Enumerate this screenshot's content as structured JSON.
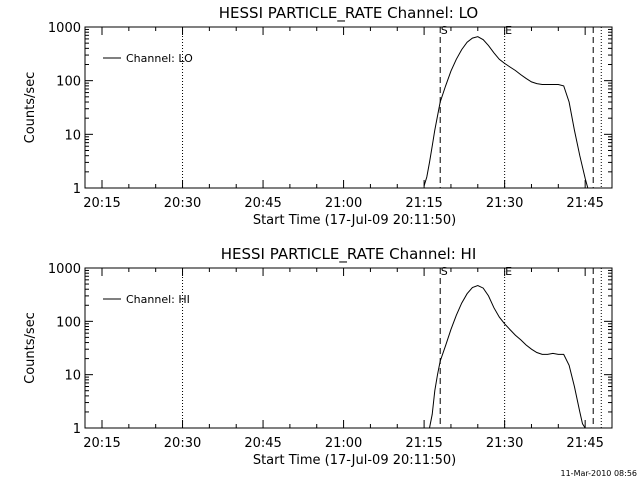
{
  "chart_data": [
    {
      "type": "line",
      "title": "HESSI PARTICLE_RATE Channel: LO",
      "xlabel": "Start Time (17-Jul-09 20:11:50)",
      "ylabel": "Counts/sec",
      "yscale": "log",
      "xlim": [
        "20:11:50",
        "21:50:00"
      ],
      "ylim": [
        1,
        1000
      ],
      "xticks": [
        "20:15",
        "20:30",
        "20:45",
        "21:00",
        "21:15",
        "21:30",
        "21:45"
      ],
      "yticks": [
        "1",
        "10",
        "100",
        "1000"
      ],
      "legend": {
        "position": "top-left",
        "entries": [
          "Channel: LO"
        ]
      },
      "markers": [
        {
          "time": "20:30:00",
          "style": "dotted",
          "label": ""
        },
        {
          "time": "21:18:00",
          "style": "dashed",
          "label": "S"
        },
        {
          "time": "21:30:00",
          "style": "dotted",
          "label": "E"
        },
        {
          "time": "21:46:30",
          "style": "dashed",
          "label": ""
        },
        {
          "time": "21:48:00",
          "style": "dotted",
          "label": ""
        }
      ],
      "series": [
        {
          "name": "Channel: LO",
          "x": [
            "21:15:00",
            "21:15:30",
            "21:16:00",
            "21:16:30",
            "21:17:00",
            "21:17:30",
            "21:18:00",
            "21:19:00",
            "21:20:00",
            "21:21:00",
            "21:22:00",
            "21:23:00",
            "21:24:00",
            "21:25:00",
            "21:26:00",
            "21:27:00",
            "21:28:00",
            "21:29:00",
            "21:30:00",
            "21:31:00",
            "21:32:00",
            "21:33:00",
            "21:34:00",
            "21:35:00",
            "21:36:00",
            "21:37:00",
            "21:38:00",
            "21:39:00",
            "21:40:00",
            "21:41:00",
            "21:42:00",
            "21:43:00",
            "21:44:00",
            "21:45:00",
            "21:45:30"
          ],
          "values": [
            1.1,
            1.6,
            3,
            6,
            12,
            22,
            40,
            80,
            150,
            250,
            380,
            520,
            620,
            660,
            580,
            450,
            330,
            250,
            210,
            180,
            155,
            130,
            110,
            95,
            88,
            85,
            85,
            85,
            85,
            80,
            40,
            12,
            4,
            1.5,
            1
          ]
        }
      ]
    },
    {
      "type": "line",
      "title": "HESSI PARTICLE_RATE Channel: HI",
      "xlabel": "Start Time (17-Jul-09 20:11:50)",
      "ylabel": "Counts/sec",
      "yscale": "log",
      "xlim": [
        "20:11:50",
        "21:50:00"
      ],
      "ylim": [
        1,
        1000
      ],
      "xticks": [
        "20:15",
        "20:30",
        "20:45",
        "21:00",
        "21:15",
        "21:30",
        "21:45"
      ],
      "yticks": [
        "1",
        "10",
        "100",
        "1000"
      ],
      "legend": {
        "position": "top-left",
        "entries": [
          "Channel: HI"
        ]
      },
      "markers": [
        {
          "time": "20:30:00",
          "style": "dotted",
          "label": ""
        },
        {
          "time": "21:18:00",
          "style": "dashed",
          "label": "S"
        },
        {
          "time": "21:30:00",
          "style": "dotted",
          "label": "E"
        },
        {
          "time": "21:46:30",
          "style": "dashed",
          "label": ""
        },
        {
          "time": "21:48:00",
          "style": "dotted",
          "label": ""
        }
      ],
      "series": [
        {
          "name": "Channel: HI",
          "x": [
            "21:16:00",
            "21:16:30",
            "21:17:00",
            "21:17:30",
            "21:18:00",
            "21:19:00",
            "21:20:00",
            "21:21:00",
            "21:22:00",
            "21:23:00",
            "21:24:00",
            "21:25:00",
            "21:26:00",
            "21:27:00",
            "21:28:00",
            "21:29:00",
            "21:30:00",
            "21:31:00",
            "21:32:00",
            "21:33:00",
            "21:34:00",
            "21:35:00",
            "21:36:00",
            "21:37:00",
            "21:38:00",
            "21:39:00",
            "21:40:00",
            "21:41:00",
            "21:42:00",
            "21:43:00",
            "21:44:00",
            "21:44:30",
            "21:45:00"
          ],
          "values": [
            1,
            1.8,
            5,
            10,
            18,
            35,
            70,
            130,
            220,
            330,
            430,
            470,
            420,
            300,
            180,
            120,
            90,
            70,
            55,
            45,
            36,
            30,
            26,
            24,
            24,
            25,
            24,
            24,
            15,
            6,
            2,
            1.2,
            1
          ]
        }
      ]
    }
  ],
  "footer": {
    "timestamp": "11-Mar-2010 08:56"
  }
}
